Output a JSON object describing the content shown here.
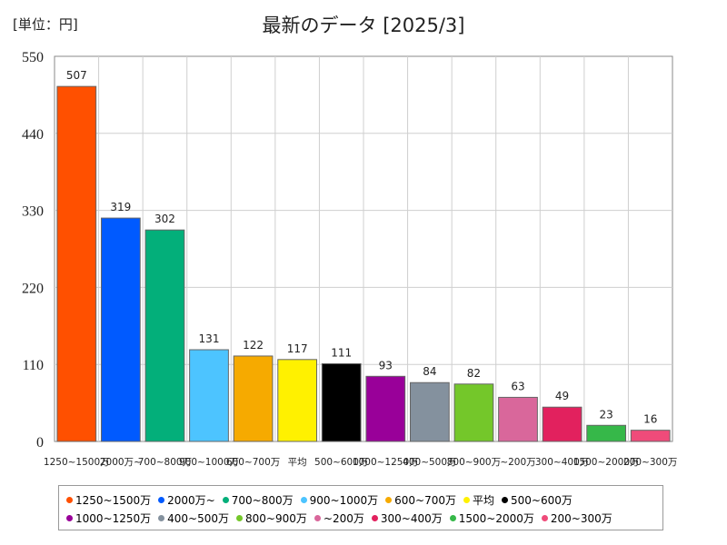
{
  "chart_data": {
    "type": "bar",
    "title": "最新のデータ [2025/3]",
    "unit_label": "[単位：円]",
    "ylim": [
      0,
      550
    ],
    "yticks": [
      0,
      110,
      220,
      330,
      440,
      550
    ],
    "grid": true,
    "legend_position": "bottom",
    "categories": [
      "1250~1500万",
      "2000万~",
      "700~800万",
      "900~1000万",
      "600~700万",
      "平均",
      "500~600万",
      "1000~1250万",
      "400~500万",
      "800~900万",
      "~200万",
      "300~400万",
      "1500~2000万",
      "200~300万"
    ],
    "values": [
      507,
      319,
      302,
      131,
      122,
      117,
      111,
      93,
      84,
      82,
      63,
      49,
      23,
      16
    ],
    "colors": [
      "#ff5000",
      "#005aff",
      "#03af7a",
      "#4dc4ff",
      "#f6aa00",
      "#fff100",
      "#000000",
      "#990099",
      "#84919e",
      "#74c72a",
      "#d9679b",
      "#e2215e",
      "#36b849",
      "#ef4b7a"
    ]
  }
}
